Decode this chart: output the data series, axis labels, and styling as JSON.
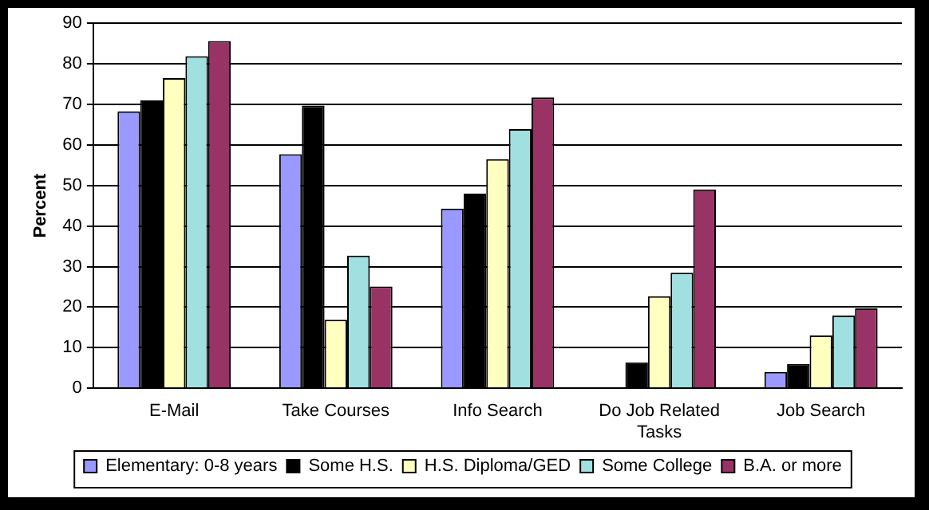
{
  "chart_data": {
    "type": "bar",
    "ylabel": "Percent",
    "categories": [
      "E-Mail",
      "Take Courses",
      "Info Search",
      "Do Job Related Tasks",
      "Job Search"
    ],
    "series": [
      {
        "name": "Elementary: 0-8 years",
        "color": "#9999ff",
        "values": [
          68.3,
          57.7,
          44.3,
          null,
          4
        ]
      },
      {
        "name": "Some H.S.",
        "color": "#000000",
        "values": [
          71,
          69.7,
          48,
          6.4,
          6
        ]
      },
      {
        "name": "H.S. Diploma/GED",
        "color": "#ffffc0",
        "values": [
          76.5,
          16.9,
          56.5,
          22.7,
          13
        ]
      },
      {
        "name": "Some College",
        "color": "#a0e0e0",
        "values": [
          81.9,
          32.7,
          63.9,
          28.5,
          17.9
        ]
      },
      {
        "name": "B.A. or more",
        "color": "#993366",
        "values": [
          85.6,
          25.1,
          71.7,
          49,
          19.7
        ]
      }
    ],
    "ylim": [
      0,
      90
    ],
    "yticks": [
      0,
      10,
      20,
      30,
      40,
      50,
      60,
      70,
      80,
      90
    ],
    "grid": "y",
    "legend": "bottom"
  }
}
